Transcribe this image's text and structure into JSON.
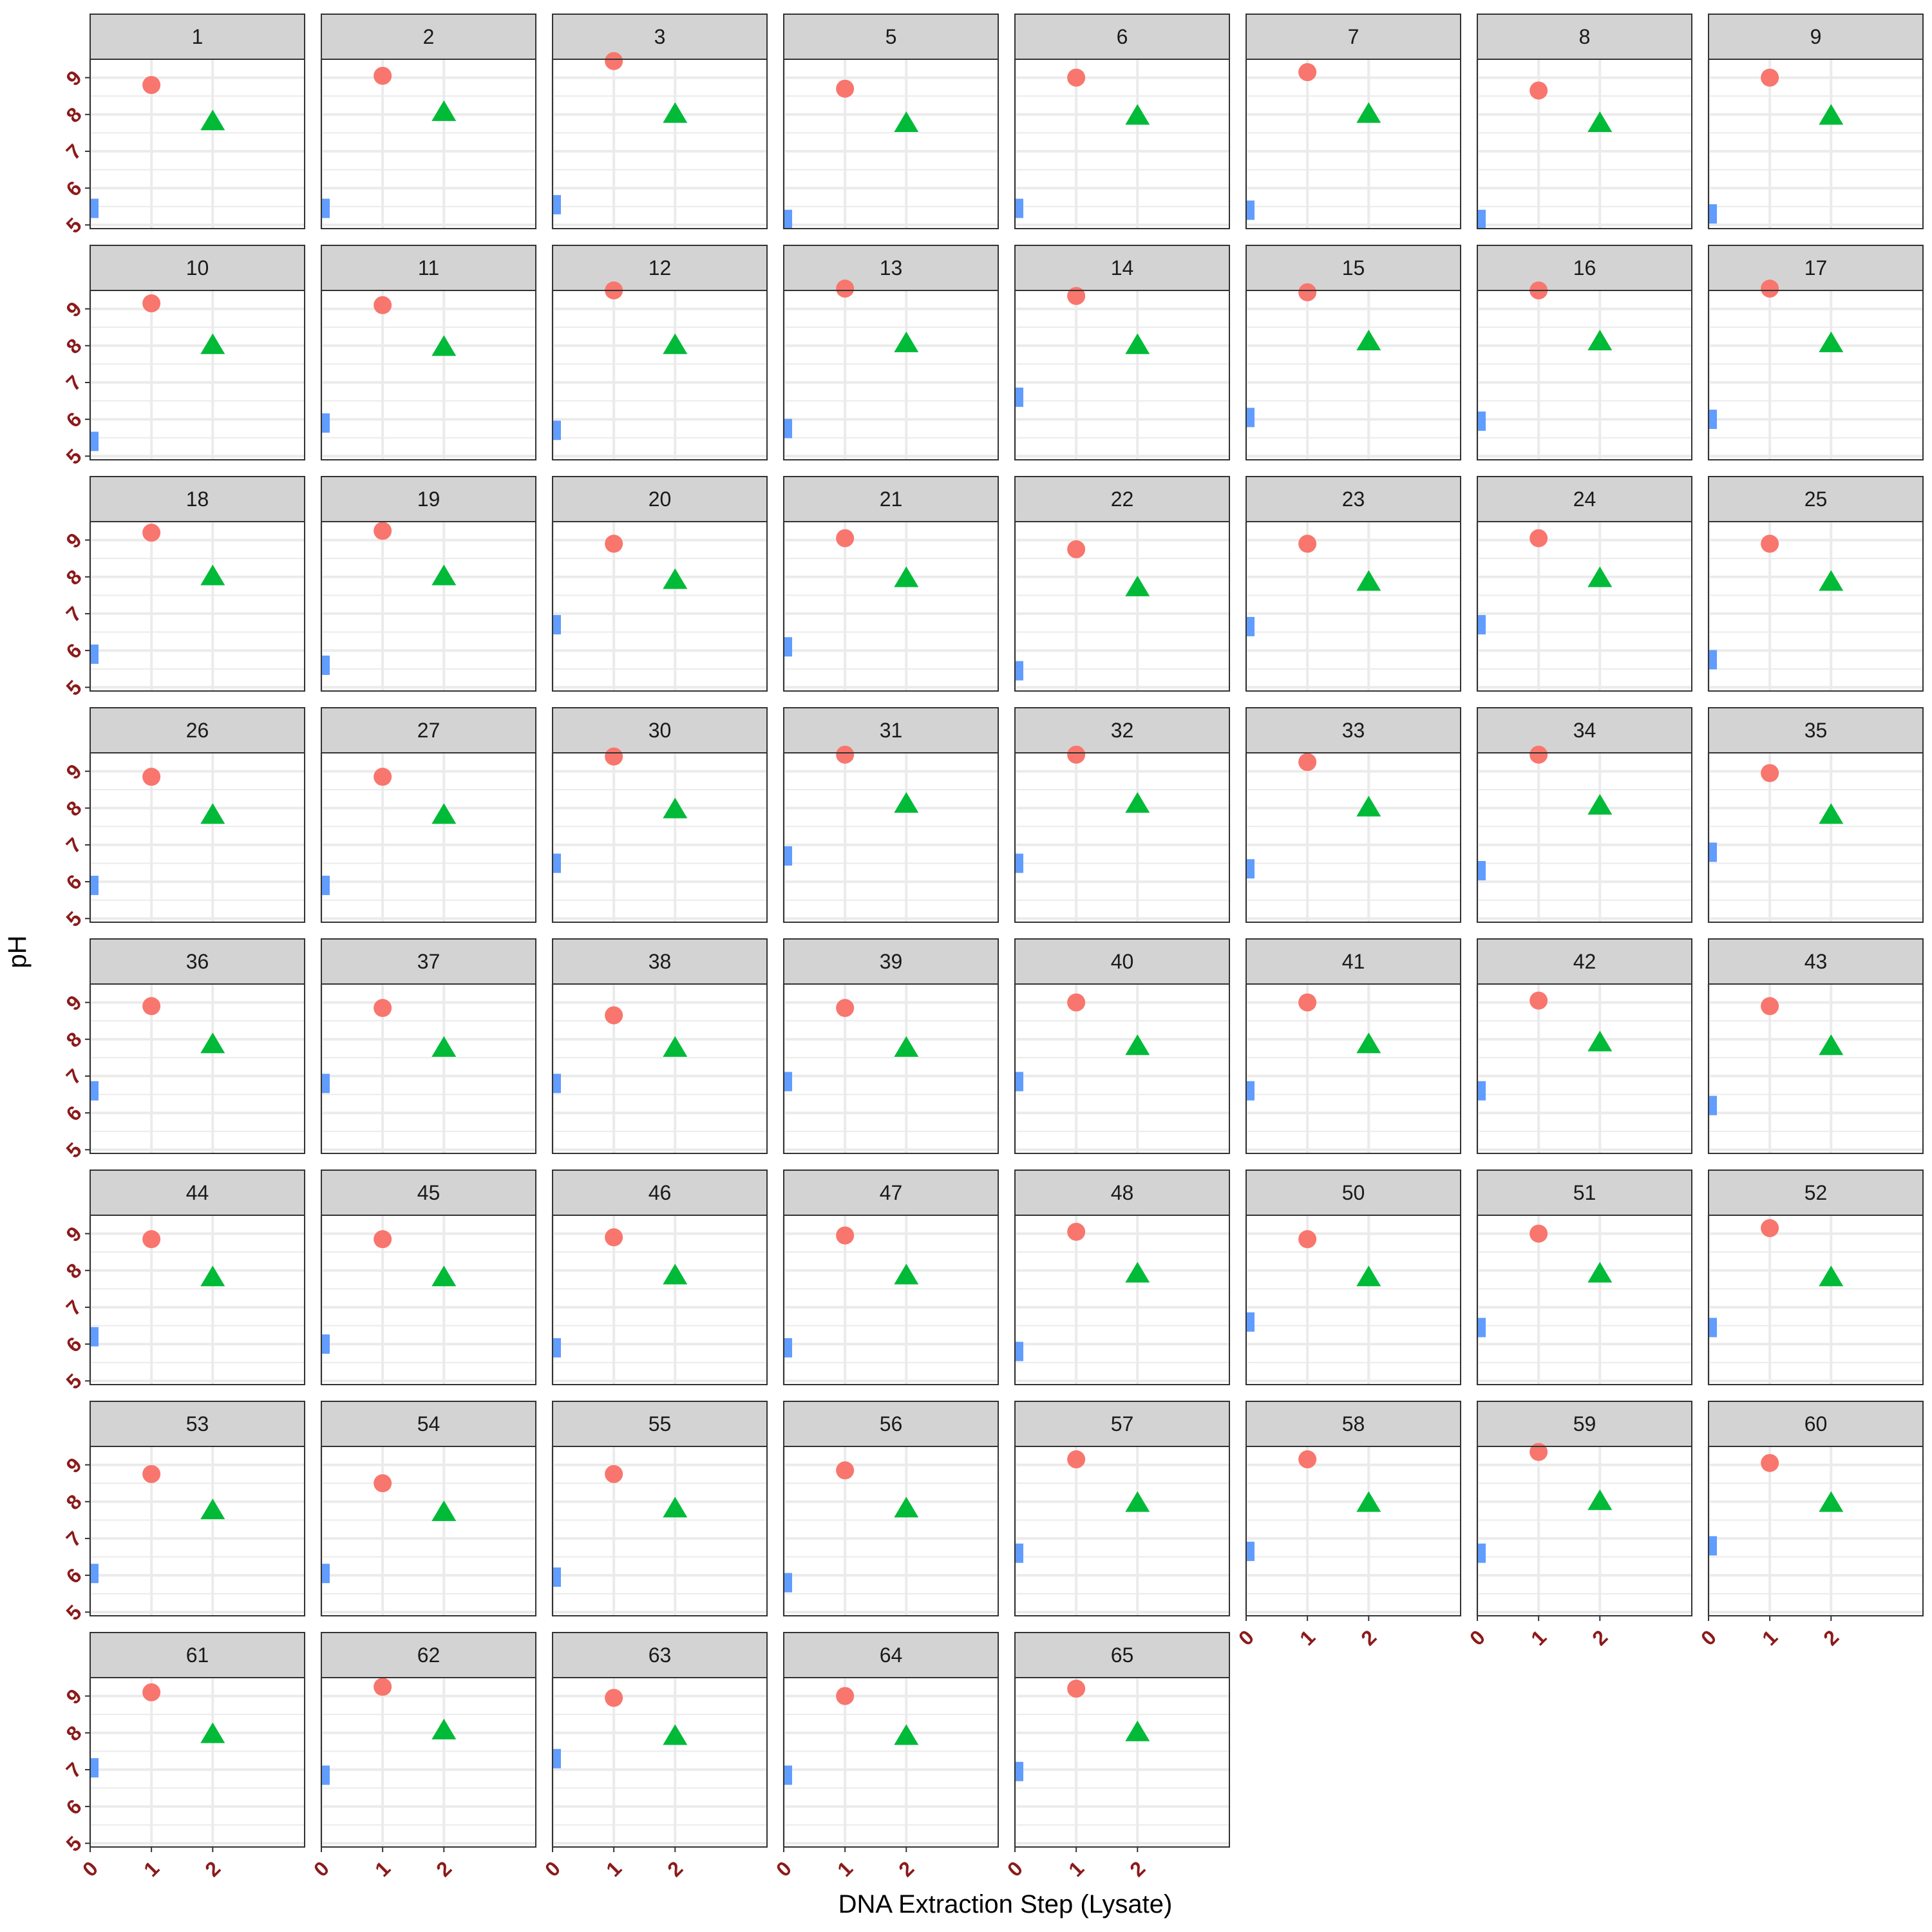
{
  "chart_data": {
    "type": "scatter",
    "layout": "faceted small multiples (8 columns)",
    "xlabel": "DNA Extraction Step (Lysate)",
    "ylabel": "pH",
    "xticks": [
      "0",
      "1",
      "2"
    ],
    "yticks": [
      "5",
      "6",
      "7",
      "8",
      "9"
    ],
    "xlim": [
      0,
      3.5
    ],
    "ylim": [
      4.9,
      9.5
    ],
    "grid": true,
    "legend": "none",
    "colors": {
      "step0": "#619CFF",
      "step1": "#F8766D",
      "step2": "#00BA38",
      "tick_label": "#8B1A1A",
      "strip_fill": "#D3D3D3",
      "grid": "#EBEBEB",
      "panel_border": "#333333"
    },
    "markers": {
      "step0": "bar",
      "step1": "circle",
      "step2": "triangle"
    },
    "panels": [
      {
        "label": "1",
        "values": [
          5.45,
          8.8,
          7.8
        ]
      },
      {
        "label": "2",
        "values": [
          5.45,
          9.05,
          8.05
        ]
      },
      {
        "label": "3",
        "values": [
          5.55,
          9.45,
          8.0
        ]
      },
      {
        "label": "5",
        "values": [
          5.15,
          8.7,
          7.75
        ]
      },
      {
        "label": "6",
        "values": [
          5.45,
          9.0,
          7.95
        ]
      },
      {
        "label": "7",
        "values": [
          5.4,
          9.15,
          8.0
        ]
      },
      {
        "label": "8",
        "values": [
          5.15,
          8.65,
          7.75
        ]
      },
      {
        "label": "9",
        "values": [
          5.3,
          9.0,
          7.95
        ]
      },
      {
        "label": "10",
        "values": [
          5.4,
          9.15,
          8.0
        ]
      },
      {
        "label": "11",
        "values": [
          5.9,
          9.1,
          7.95
        ]
      },
      {
        "label": "12",
        "values": [
          5.7,
          9.5,
          8.0
        ]
      },
      {
        "label": "13",
        "values": [
          5.75,
          9.55,
          8.05
        ]
      },
      {
        "label": "14",
        "values": [
          6.6,
          9.35,
          8.0
        ]
      },
      {
        "label": "15",
        "values": [
          6.05,
          9.45,
          8.1
        ]
      },
      {
        "label": "16",
        "values": [
          5.95,
          9.5,
          8.1
        ]
      },
      {
        "label": "17",
        "values": [
          6.0,
          9.55,
          8.05
        ]
      },
      {
        "label": "18",
        "values": [
          5.9,
          9.2,
          8.0
        ]
      },
      {
        "label": "19",
        "values": [
          5.6,
          9.25,
          8.0
        ]
      },
      {
        "label": "20",
        "values": [
          6.7,
          8.9,
          7.9
        ]
      },
      {
        "label": "21",
        "values": [
          6.1,
          9.05,
          7.95
        ]
      },
      {
        "label": "22",
        "values": [
          5.45,
          8.75,
          7.7
        ]
      },
      {
        "label": "23",
        "values": [
          6.65,
          8.9,
          7.85
        ]
      },
      {
        "label": "24",
        "values": [
          6.7,
          9.05,
          7.95
        ]
      },
      {
        "label": "25",
        "values": [
          5.75,
          8.9,
          7.85
        ]
      },
      {
        "label": "26",
        "values": [
          5.9,
          8.85,
          7.8
        ]
      },
      {
        "label": "27",
        "values": [
          5.9,
          8.85,
          7.8
        ]
      },
      {
        "label": "30",
        "values": [
          6.5,
          9.4,
          7.95
        ]
      },
      {
        "label": "31",
        "values": [
          6.7,
          9.45,
          8.1
        ]
      },
      {
        "label": "32",
        "values": [
          6.5,
          9.45,
          8.1
        ]
      },
      {
        "label": "33",
        "values": [
          6.35,
          9.25,
          8.0
        ]
      },
      {
        "label": "34",
        "values": [
          6.3,
          9.45,
          8.05
        ]
      },
      {
        "label": "35",
        "values": [
          6.8,
          8.95,
          7.8
        ]
      },
      {
        "label": "36",
        "values": [
          6.6,
          8.9,
          7.85
        ]
      },
      {
        "label": "37",
        "values": [
          6.8,
          8.85,
          7.75
        ]
      },
      {
        "label": "38",
        "values": [
          6.8,
          8.65,
          7.75
        ]
      },
      {
        "label": "39",
        "values": [
          6.85,
          8.85,
          7.75
        ]
      },
      {
        "label": "40",
        "values": [
          6.85,
          9.0,
          7.8
        ]
      },
      {
        "label": "41",
        "values": [
          6.6,
          9.0,
          7.85
        ]
      },
      {
        "label": "42",
        "values": [
          6.6,
          9.05,
          7.9
        ]
      },
      {
        "label": "43",
        "values": [
          6.2,
          8.9,
          7.8
        ]
      },
      {
        "label": "44",
        "values": [
          6.2,
          8.85,
          7.8
        ]
      },
      {
        "label": "45",
        "values": [
          6.0,
          8.85,
          7.8
        ]
      },
      {
        "label": "46",
        "values": [
          5.9,
          8.9,
          7.85
        ]
      },
      {
        "label": "47",
        "values": [
          5.9,
          8.95,
          7.85
        ]
      },
      {
        "label": "48",
        "values": [
          5.8,
          9.05,
          7.9
        ]
      },
      {
        "label": "50",
        "values": [
          6.6,
          8.85,
          7.8
        ]
      },
      {
        "label": "51",
        "values": [
          6.45,
          9.0,
          7.9
        ]
      },
      {
        "label": "52",
        "values": [
          6.45,
          9.15,
          7.8
        ]
      },
      {
        "label": "53",
        "values": [
          6.05,
          8.75,
          7.75
        ]
      },
      {
        "label": "54",
        "values": [
          6.05,
          8.5,
          7.7
        ]
      },
      {
        "label": "55",
        "values": [
          5.95,
          8.75,
          7.8
        ]
      },
      {
        "label": "56",
        "values": [
          5.8,
          8.85,
          7.8
        ]
      },
      {
        "label": "57",
        "values": [
          6.6,
          9.15,
          7.95
        ]
      },
      {
        "label": "58",
        "values": [
          6.65,
          9.15,
          7.95
        ]
      },
      {
        "label": "59",
        "values": [
          6.6,
          9.35,
          8.0
        ]
      },
      {
        "label": "60",
        "values": [
          6.8,
          9.05,
          7.95
        ]
      },
      {
        "label": "61",
        "values": [
          7.05,
          9.1,
          7.95
        ]
      },
      {
        "label": "62",
        "values": [
          6.85,
          9.25,
          8.05
        ]
      },
      {
        "label": "63",
        "values": [
          7.3,
          8.95,
          7.9
        ]
      },
      {
        "label": "64",
        "values": [
          6.85,
          9.0,
          7.9
        ]
      },
      {
        "label": "65",
        "values": [
          6.95,
          9.2,
          8.0
        ]
      }
    ]
  }
}
